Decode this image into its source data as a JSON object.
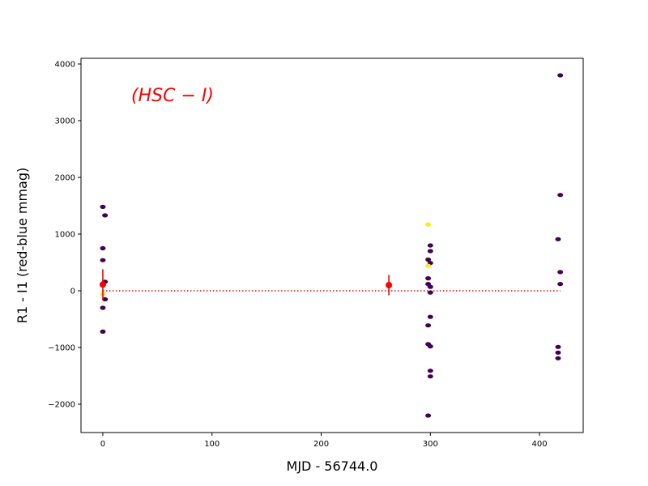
{
  "chart_data": {
    "type": "scatter",
    "title": "",
    "xlabel": "MJD - 56744.0",
    "ylabel": "R1 - I1 (red-blue mmag)",
    "xlim": [
      -20,
      440
    ],
    "ylim": [
      -2500,
      4100
    ],
    "xticks": [
      0,
      100,
      200,
      300,
      400
    ],
    "yticks": [
      -2000,
      -1000,
      0,
      1000,
      2000,
      3000,
      4000
    ],
    "xtick_labels": [
      "0",
      "100",
      "200",
      "300",
      "400"
    ],
    "ytick_labels": [
      "−2000",
      "−1000",
      "0",
      "1000",
      "2000",
      "3000",
      "4000"
    ],
    "grid": false,
    "annotation": {
      "text": "(HSC − I)",
      "color": "#ff0000"
    },
    "colors": {
      "low": "#440154",
      "high": "#fde725",
      "mean": "#ff0000"
    },
    "series": [
      {
        "kind": "points",
        "points": [
          {
            "x": 0,
            "y": 1480,
            "c": 0
          },
          {
            "x": 2,
            "y": 1330,
            "c": 0
          },
          {
            "x": 0,
            "y": 750,
            "c": 0
          },
          {
            "x": 0,
            "y": 540,
            "c": 0
          },
          {
            "x": 2,
            "y": 160,
            "c": 0
          },
          {
            "x": 0,
            "y": -60,
            "c": 1
          },
          {
            "x": 2,
            "y": -150,
            "c": 0
          },
          {
            "x": 0,
            "y": -300,
            "c": 0
          },
          {
            "x": 0,
            "y": -720,
            "c": 0
          },
          {
            "x": 298,
            "y": 1170,
            "c": 1
          },
          {
            "x": 300,
            "y": 800,
            "c": 0
          },
          {
            "x": 300,
            "y": 700,
            "c": 0
          },
          {
            "x": 298,
            "y": 550,
            "c": 0
          },
          {
            "x": 300,
            "y": 490,
            "c": 0
          },
          {
            "x": 298,
            "y": 440,
            "c": 1
          },
          {
            "x": 298,
            "y": 220,
            "c": 0
          },
          {
            "x": 298,
            "y": 120,
            "c": 0
          },
          {
            "x": 300,
            "y": 70,
            "c": 0
          },
          {
            "x": 300,
            "y": -30,
            "c": 0
          },
          {
            "x": 300,
            "y": -460,
            "c": 0
          },
          {
            "x": 298,
            "y": -610,
            "c": 0
          },
          {
            "x": 298,
            "y": -940,
            "c": 0
          },
          {
            "x": 300,
            "y": -980,
            "c": 0
          },
          {
            "x": 300,
            "y": -1410,
            "c": 0
          },
          {
            "x": 300,
            "y": -1510,
            "c": 0
          },
          {
            "x": 298,
            "y": -2200,
            "c": 0
          },
          {
            "x": 419,
            "y": 3800,
            "c": 0
          },
          {
            "x": 419,
            "y": 1690,
            "c": 0
          },
          {
            "x": 417,
            "y": 910,
            "c": 0
          },
          {
            "x": 419,
            "y": 330,
            "c": 0
          },
          {
            "x": 419,
            "y": 120,
            "c": 0
          },
          {
            "x": 417,
            "y": -990,
            "c": 0
          },
          {
            "x": 417,
            "y": -1090,
            "c": 0
          },
          {
            "x": 417,
            "y": -1190,
            "c": 0
          }
        ]
      },
      {
        "kind": "means",
        "points": [
          {
            "x": 0,
            "y": 110,
            "yerr": 270
          },
          {
            "x": 262,
            "y": 100,
            "yerr": 180
          }
        ]
      },
      {
        "kind": "reference-line",
        "y": 0,
        "x": [
          0,
          419
        ]
      }
    ]
  }
}
